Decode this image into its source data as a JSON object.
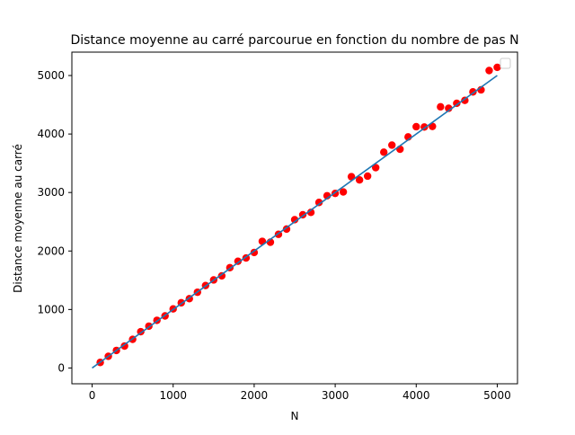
{
  "chart_data": {
    "type": "scatter",
    "title": "Distance moyenne au carré parcourue en fonction du nombre de pas N",
    "xlabel": "N",
    "ylabel": "Distance moyenne au carré",
    "xlim": [
      -250,
      5250
    ],
    "ylim": [
      -270,
      5400
    ],
    "xticks": [
      0,
      1000,
      2000,
      3000,
      4000,
      5000
    ],
    "yticks": [
      0,
      1000,
      2000,
      3000,
      4000,
      5000
    ],
    "grid": false,
    "legend": "top-right",
    "fit_line": {
      "color": "#1f77b4",
      "x": [
        0,
        5000
      ],
      "y": [
        0,
        5000
      ]
    },
    "series": [
      {
        "color": "#ff0000",
        "x": [
          100,
          200,
          300,
          400,
          500,
          600,
          700,
          800,
          900,
          1000,
          1100,
          1200,
          1300,
          1400,
          1500,
          1600,
          1700,
          1800,
          1900,
          2000,
          2100,
          2200,
          2300,
          2400,
          2500,
          2600,
          2700,
          2800,
          2900,
          3000,
          3100,
          3200,
          3300,
          3400,
          3500,
          3600,
          3700,
          3800,
          3900,
          4000,
          4100,
          4200,
          4300,
          4400,
          4500,
          4600,
          4700,
          4800,
          4900,
          5000
        ],
        "values": [
          95,
          200,
          300,
          375,
          490,
          620,
          715,
          815,
          890,
          1010,
          1115,
          1185,
          1295,
          1410,
          1505,
          1575,
          1715,
          1825,
          1880,
          1975,
          2165,
          2150,
          2285,
          2375,
          2535,
          2620,
          2660,
          2830,
          2945,
          2985,
          3010,
          3270,
          3215,
          3280,
          3425,
          3690,
          3810,
          3740,
          3950,
          4125,
          4120,
          4130,
          4465,
          4440,
          4525,
          4575,
          4720,
          4755,
          5085,
          5140
        ]
      }
    ]
  }
}
